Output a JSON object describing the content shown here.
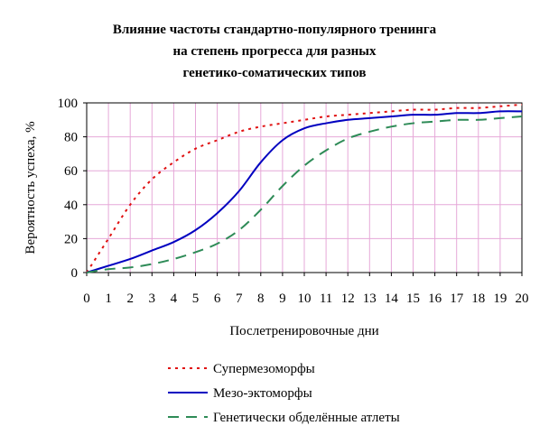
{
  "chart_data": {
    "type": "line",
    "title_lines": [
      "Влияние частоты стандартно-популярного тренинга",
      "на степень прогресса для разных",
      "генетико-соматических типов"
    ],
    "xlabel": "Послетренировочные дни",
    "ylabel": "Вероятность успеха, %",
    "xlim": [
      0,
      20
    ],
    "ylim": [
      0,
      100
    ],
    "x_ticks": [
      0,
      1,
      2,
      3,
      4,
      5,
      6,
      7,
      8,
      9,
      10,
      11,
      12,
      13,
      14,
      15,
      16,
      17,
      18,
      19,
      20
    ],
    "y_ticks": [
      0,
      20,
      40,
      60,
      80,
      100
    ],
    "grid": true,
    "legend_position": "bottom",
    "series": [
      {
        "name": "Супермезоморфы",
        "color": "#e01010",
        "style": "dotted",
        "x": [
          0,
          1,
          2,
          3,
          4,
          5,
          6,
          7,
          8,
          9,
          10,
          11,
          12,
          13,
          14,
          15,
          16,
          17,
          18,
          19,
          20
        ],
        "y": [
          0,
          20,
          40,
          55,
          65,
          73,
          78,
          83,
          86,
          88,
          90,
          92,
          93,
          94,
          95,
          96,
          96,
          97,
          97,
          98,
          99
        ]
      },
      {
        "name": "Мезо-эктоморфы",
        "color": "#0000c0",
        "style": "solid",
        "x": [
          0,
          1,
          2,
          3,
          4,
          5,
          6,
          7,
          8,
          9,
          10,
          11,
          12,
          13,
          14,
          15,
          16,
          17,
          18,
          19,
          20
        ],
        "y": [
          0,
          4,
          8,
          13,
          18,
          25,
          35,
          48,
          65,
          78,
          85,
          88,
          90,
          91,
          92,
          93,
          93,
          94,
          94,
          95,
          95
        ]
      },
      {
        "name": "Генетически обделённые атлеты",
        "color": "#2e8b57",
        "style": "dashed",
        "x": [
          0,
          1,
          2,
          3,
          4,
          5,
          6,
          7,
          8,
          9,
          10,
          11,
          12,
          13,
          14,
          15,
          16,
          17,
          18,
          19,
          20
        ],
        "y": [
          0,
          2,
          3,
          5,
          8,
          12,
          17,
          25,
          37,
          51,
          63,
          72,
          79,
          83,
          86,
          88,
          89,
          90,
          90,
          91,
          92
        ]
      }
    ]
  }
}
